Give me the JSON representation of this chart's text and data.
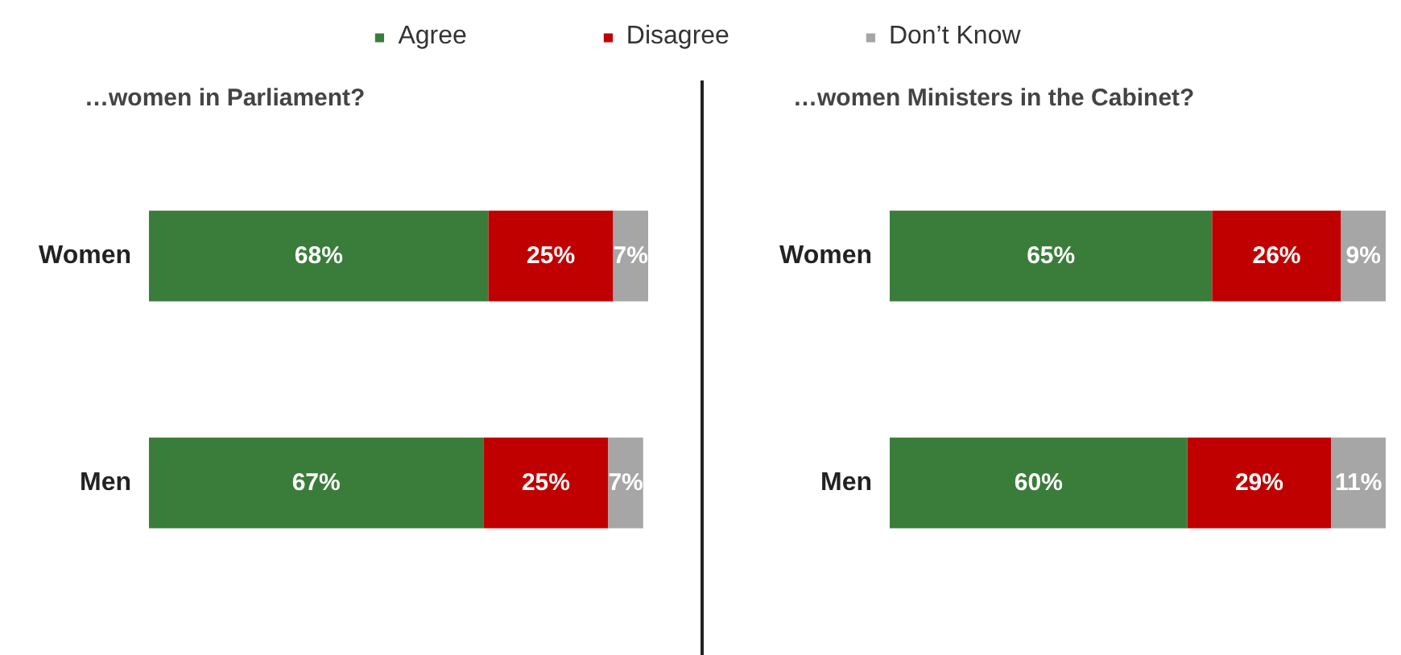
{
  "chart_data": [
    {
      "type": "bar",
      "orientation": "horizontal",
      "stacked": true,
      "title": "…women in Parliament?",
      "categories": [
        "Women",
        "Men"
      ],
      "legend": "top",
      "series": [
        {
          "name": "Agree",
          "color": "#3a7d3a",
          "values": [
            68,
            67
          ],
          "value_labels": [
            "68%",
            "67%"
          ]
        },
        {
          "name": "Disagree",
          "color": "#c00000",
          "values": [
            25,
            25
          ],
          "value_labels": [
            "25%",
            "25%"
          ]
        },
        {
          "name": "Don’t Know",
          "color": "#a6a6a6",
          "values": [
            7,
            7
          ],
          "value_labels": [
            "7%",
            "7%"
          ]
        }
      ]
    },
    {
      "type": "bar",
      "orientation": "horizontal",
      "stacked": true,
      "title": "…women Ministers in the Cabinet?",
      "categories": [
        "Women",
        "Men"
      ],
      "legend": "top",
      "series": [
        {
          "name": "Agree",
          "color": "#3a7d3a",
          "values": [
            65,
            60
          ],
          "value_labels": [
            "65%",
            "60%"
          ]
        },
        {
          "name": "Disagree",
          "color": "#c00000",
          "values": [
            26,
            29
          ],
          "value_labels": [
            "26%",
            "29%"
          ]
        },
        {
          "name": "Don’t Know",
          "color": "#a6a6a6",
          "values": [
            9,
            11
          ],
          "value_labels": [
            "9%",
            "11%"
          ]
        }
      ]
    }
  ]
}
